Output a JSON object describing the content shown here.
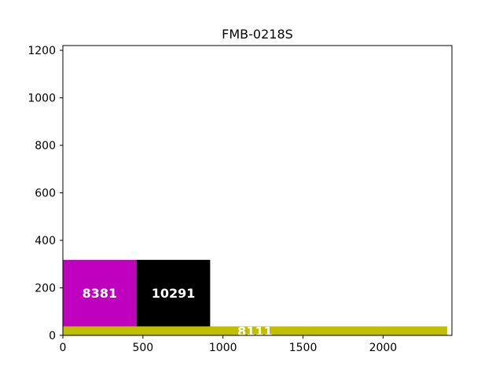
{
  "chart_data": {
    "type": "treemap",
    "title": "FMB-0218S",
    "xlabel": "",
    "ylabel": "",
    "xlim": [
      0,
      2430
    ],
    "ylim": [
      0,
      1220
    ],
    "x_ticks": [
      0,
      500,
      1000,
      1500,
      2000
    ],
    "y_ticks": [
      0,
      200,
      400,
      600,
      800,
      1000,
      1200
    ],
    "grid": false,
    "rectangles": [
      {
        "label": "8111",
        "x": 0,
        "y": 0,
        "width": 2400,
        "height": 38,
        "color": "#bfbf00"
      },
      {
        "label": "8381",
        "x": 0,
        "y": 38,
        "width": 460,
        "height": 280,
        "color": "#bf00bf"
      },
      {
        "label": "10291",
        "x": 460,
        "y": 38,
        "width": 460,
        "height": 280,
        "color": "#000000"
      }
    ]
  }
}
